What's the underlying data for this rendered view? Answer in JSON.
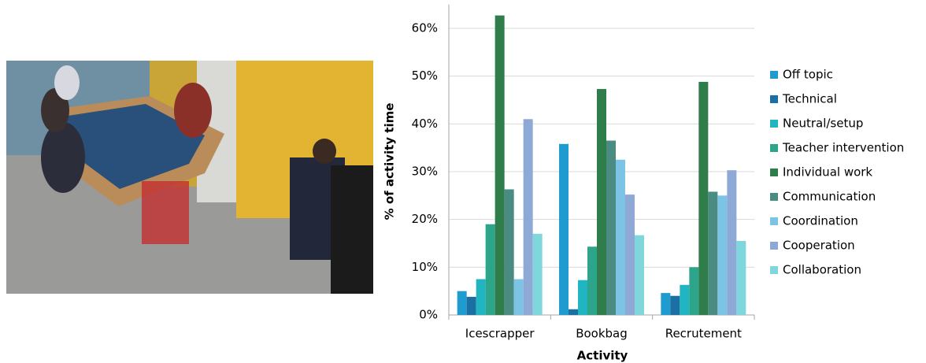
{
  "chart_data": {
    "type": "bar",
    "categories": [
      "Icescrapper",
      "Bookbag",
      "Recrutement"
    ],
    "y_label": "% of activity time",
    "x_label": "Activity",
    "ylim": [
      0,
      65
    ],
    "yticks": [
      {
        "value": 0,
        "label": "0%"
      },
      {
        "value": 10,
        "label": "10%"
      },
      {
        "value": 20,
        "label": "20%"
      },
      {
        "value": 30,
        "label": "30%"
      },
      {
        "value": 40,
        "label": "40%"
      },
      {
        "value": 50,
        "label": "50%"
      },
      {
        "value": 60,
        "label": "60%"
      }
    ],
    "grid": true,
    "legend": "right",
    "series": [
      {
        "name": "Off topic",
        "color": "#1f9bcf",
        "values": [
          5,
          35.8,
          4.6
        ]
      },
      {
        "name": "Technical",
        "color": "#1a6fa3",
        "values": [
          3.8,
          1.2,
          4
        ]
      },
      {
        "name": "Neutral/setup",
        "color": "#20b5c0",
        "values": [
          7.5,
          7.3,
          6.3
        ]
      },
      {
        "name": "Teacher intervention",
        "color": "#2da58a",
        "values": [
          19,
          14.3,
          10
        ]
      },
      {
        "name": "Individual work",
        "color": "#2e7d4a",
        "values": [
          62.7,
          47.3,
          48.8
        ]
      },
      {
        "name": "Communication",
        "color": "#4a8c82",
        "values": [
          26.3,
          36.5,
          25.8
        ]
      },
      {
        "name": "Coordination",
        "color": "#7cc3e6",
        "values": [
          7.5,
          32.5,
          25
        ]
      },
      {
        "name": "Cooperation",
        "color": "#8ea9d6",
        "values": [
          41,
          25.2,
          30.3
        ]
      },
      {
        "name": "Collaboration",
        "color": "#7fd6dc",
        "values": [
          17,
          16.7,
          15.5
        ]
      }
    ]
  }
}
